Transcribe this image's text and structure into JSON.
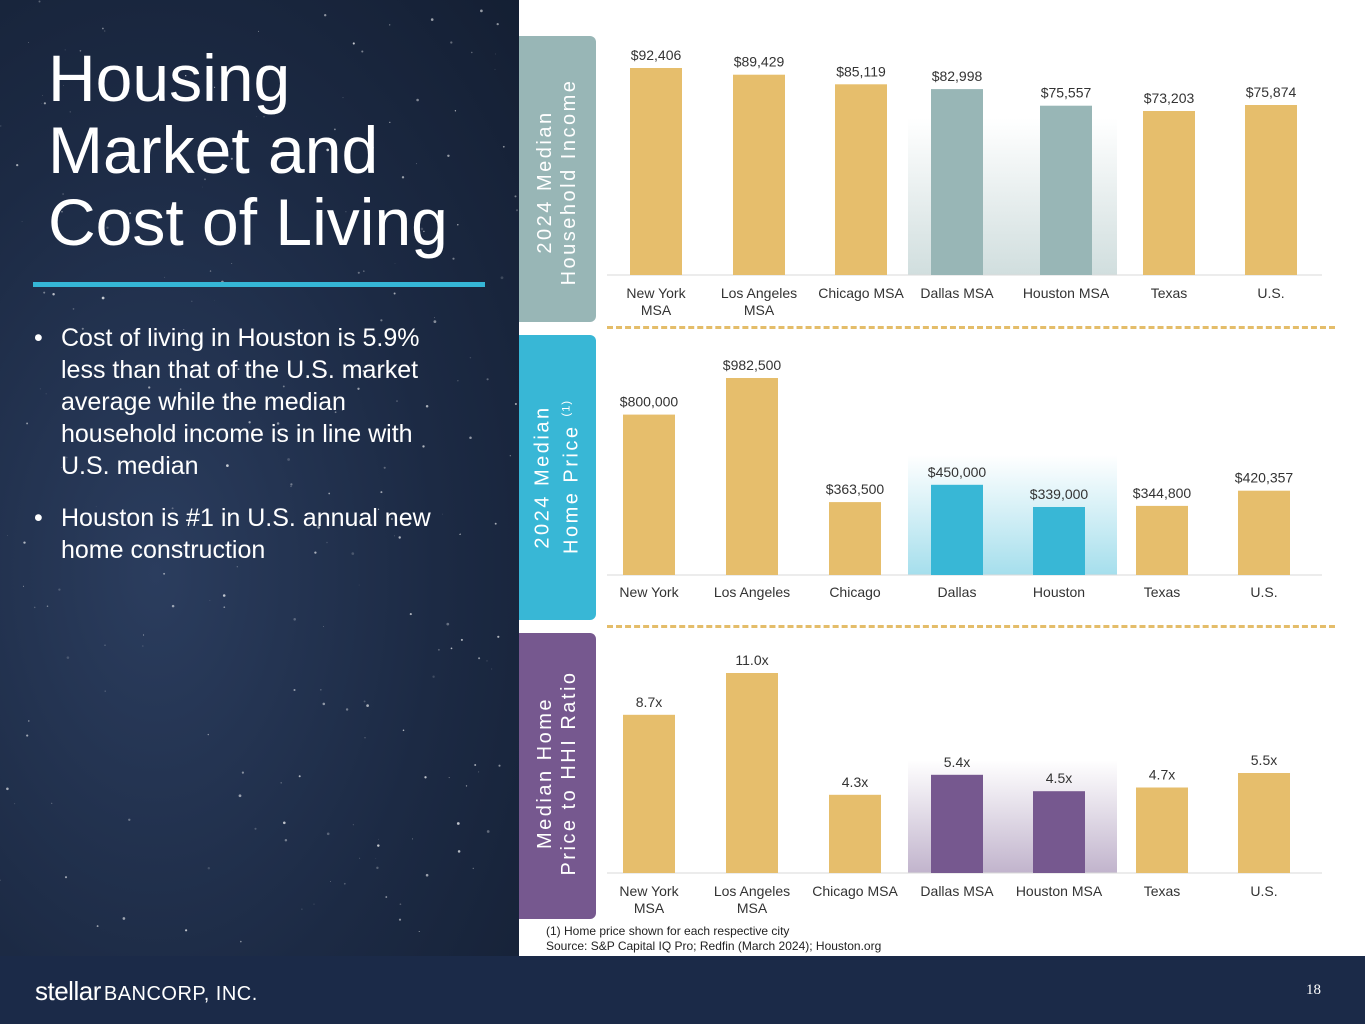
{
  "title_lines": [
    "Housing",
    "Market and",
    "Cost of Living"
  ],
  "bullets": [
    "Cost of living in Houston is 5.9% less than that of the U.S. market average while the median household income is in line with U.S. median",
    "Houston is #1 in U.S. annual new home construction"
  ],
  "bullet_glyph": "•",
  "side_labels": {
    "income": [
      "2024 Median",
      "Household Income"
    ],
    "price": [
      "2024 Median",
      "Home Price"
    ],
    "price_sup": "(1)",
    "ratio": [
      "Median Home",
      "Price to HHI Ratio"
    ]
  },
  "colors": {
    "gold": "#e6be6c",
    "income_accent": "#98b6b6",
    "price_accent": "#38b7d6",
    "ratio_accent": "#76588f",
    "income_tab": "#98b6b6",
    "price_tab": "#38b7d6",
    "ratio_tab": "#76588f",
    "dash": "#e4bd6a",
    "footer": "#1b2a48"
  },
  "chart_data": [
    {
      "type": "bar",
      "id": "income",
      "title": "2024 Median Household Income",
      "categories": [
        [
          "New York",
          "MSA"
        ],
        [
          "Los Angeles",
          "MSA"
        ],
        [
          "Chicago MSA"
        ],
        [
          "Dallas MSA"
        ],
        [
          "Houston MSA"
        ],
        [
          "Texas"
        ],
        [
          "U.S."
        ]
      ],
      "values": [
        92406,
        89429,
        85119,
        82998,
        75557,
        73203,
        75874
      ],
      "labels": [
        "$92,406",
        "$89,429",
        "$85,119",
        "$82,998",
        "$75,557",
        "$73,203",
        "$75,874"
      ],
      "highlight": [
        3,
        4
      ],
      "ylim": [
        0,
        92406
      ]
    },
    {
      "type": "bar",
      "id": "price",
      "title": "2024 Median Home Price",
      "categories": [
        [
          "New York"
        ],
        [
          "Los Angeles"
        ],
        [
          "Chicago"
        ],
        [
          "Dallas"
        ],
        [
          "Houston"
        ],
        [
          "Texas"
        ],
        [
          "U.S."
        ]
      ],
      "values": [
        800000,
        982500,
        363500,
        450000,
        339000,
        344800,
        420357
      ],
      "labels": [
        "$800,000",
        "$982,500",
        "$363,500",
        "$450,000",
        "$339,000",
        "$344,800",
        "$420,357"
      ],
      "highlight": [
        3,
        4
      ],
      "ylim": [
        0,
        982500
      ]
    },
    {
      "type": "bar",
      "id": "ratio",
      "title": "Median Home Price to HHI Ratio",
      "categories": [
        [
          "New York",
          "MSA"
        ],
        [
          "Los Angeles",
          "MSA"
        ],
        [
          "Chicago MSA"
        ],
        [
          "Dallas MSA"
        ],
        [
          "Houston MSA"
        ],
        [
          "Texas"
        ],
        [
          "U.S."
        ]
      ],
      "values": [
        8.7,
        11.0,
        4.3,
        5.4,
        4.5,
        4.7,
        5.5
      ],
      "labels": [
        "8.7x",
        "11.0x",
        "4.3x",
        "5.4x",
        "4.5x",
        "4.7x",
        "5.5x"
      ],
      "highlight": [
        3,
        4
      ],
      "ylim": [
        0,
        11.0
      ]
    }
  ],
  "footnote_lines": [
    "(1) Home price shown for each respective city",
    "Source: S&P Capital IQ Pro; Redfin (March 2024); Houston.org"
  ],
  "footer": {
    "logo_word": "stellar",
    "logo_corp": "BANCORP, INC.",
    "page_number": "18"
  }
}
